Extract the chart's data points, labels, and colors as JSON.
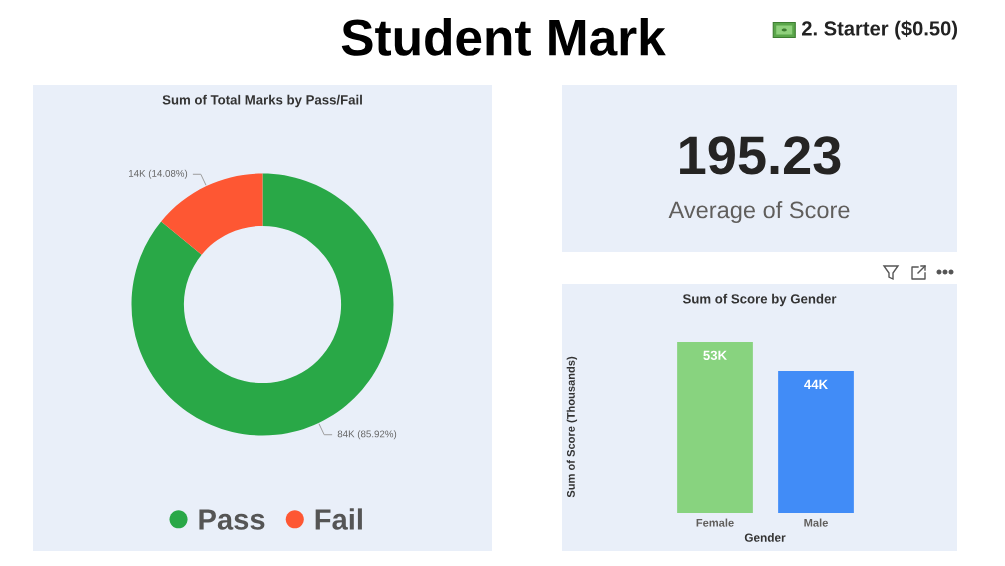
{
  "chart_data": [
    {
      "type": "other",
      "title": "Student Mark",
      "annotations": [
        "2. Starter ($0.50)"
      ]
    },
    {
      "type": "donut",
      "title": "Sum of Total Marks by Pass/Fail",
      "categories": [
        "Pass",
        "Fail"
      ],
      "values": [
        85.92,
        14.08
      ],
      "colors": [
        "#29a847",
        "#fe5733"
      ],
      "value_labels": [
        "84K (85.92%)",
        "14K (14.08%)"
      ],
      "legend": "bottom"
    },
    {
      "type": "other",
      "annotations": [
        "195.23",
        "Average of Score"
      ]
    },
    {
      "type": "bar",
      "title": "Sum of Score by Gender",
      "categories": [
        "Female",
        "Male"
      ],
      "values": [
        53,
        44
      ],
      "colors": [
        "#88d37f",
        "#418cf7"
      ],
      "value_labels": [
        "53K",
        "44K"
      ],
      "xlabel": "Gender",
      "ylabel": "Sum of Score (Thousands)",
      "tick_labels": "x"
    }
  ]
}
